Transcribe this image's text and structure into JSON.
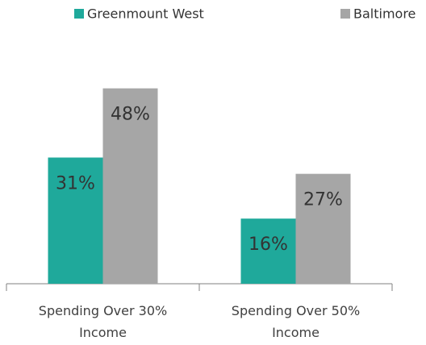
{
  "chart_data": {
    "type": "bar",
    "categories": [
      "Spending Over 30% Income",
      "Spending Over 50% Income"
    ],
    "series": [
      {
        "name": "Greenmount West",
        "color": "#1fa99b",
        "values": [
          31,
          16
        ],
        "value_labels": [
          "31%",
          "16%"
        ]
      },
      {
        "name": "Baltimore",
        "color": "#a6a6a6",
        "values": [
          48,
          27
        ],
        "value_labels": [
          "48%",
          "27%"
        ]
      }
    ],
    "legend": "top"
  }
}
